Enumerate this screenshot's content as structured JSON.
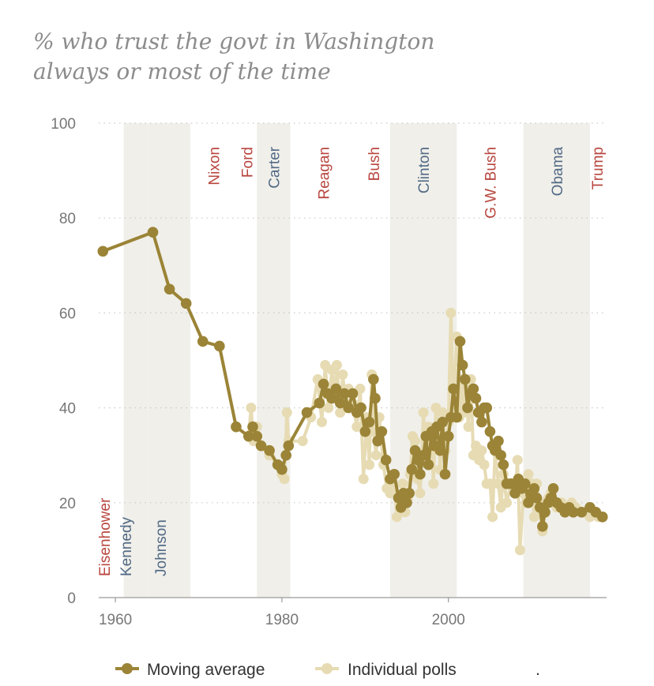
{
  "chart_data": {
    "type": "line",
    "title_lines": [
      "% who trust the govt in Washington",
      "always or most of the time"
    ],
    "ylim": [
      0,
      100
    ],
    "xlim": [
      1958,
      2019
    ],
    "y_ticks": [
      0,
      20,
      40,
      60,
      80,
      100
    ],
    "x_ticks": [
      1960,
      1980,
      2000
    ],
    "grid": "horizontal dotted",
    "legend_position": "bottom",
    "colors": {
      "moving_average": "#9b8437",
      "individual_polls": "#e6dbb3",
      "republican": "#b8463e",
      "democrat": "#526a85",
      "democrat_band": "#f0efea"
    },
    "presidents": [
      {
        "name": "Eisenhower",
        "party": "R",
        "start": 1958.0,
        "end": 1961.0
      },
      {
        "name": "Kennedy",
        "party": "D",
        "start": 1961.0,
        "end": 1963.9
      },
      {
        "name": "Johnson",
        "party": "D",
        "start": 1963.9,
        "end": 1969.0
      },
      {
        "name": "Nixon",
        "party": "R",
        "start": 1969.0,
        "end": 1974.6
      },
      {
        "name": "Ford",
        "party": "R",
        "start": 1974.6,
        "end": 1977.0
      },
      {
        "name": "Carter",
        "party": "D",
        "start": 1977.0,
        "end": 1981.0
      },
      {
        "name": "Reagan",
        "party": "R",
        "start": 1981.0,
        "end": 1989.0
      },
      {
        "name": "Bush",
        "party": "R",
        "start": 1989.0,
        "end": 1993.0
      },
      {
        "name": "Clinton",
        "party": "D",
        "start": 1993.0,
        "end": 2001.0
      },
      {
        "name": "G.W. Bush",
        "party": "R",
        "start": 2001.0,
        "end": 2009.0
      },
      {
        "name": "Obama",
        "party": "D",
        "start": 2009.0,
        "end": 2017.0
      },
      {
        "name": "Trump",
        "party": "R",
        "start": 2017.0,
        "end": 2019.0
      }
    ],
    "series": [
      {
        "name": "Moving average",
        "x": [
          1958.5,
          1964.5,
          1966.5,
          1968.5,
          1970.5,
          1972.5,
          1974.5,
          1976.0,
          1976.5,
          1977.0,
          1977.5,
          1978.5,
          1979.5,
          1980.0,
          1980.5,
          1980.8,
          1983.0,
          1984.5,
          1985.0,
          1985.5,
          1986.0,
          1986.5,
          1987.0,
          1987.5,
          1988.0,
          1988.5,
          1989.0,
          1989.5,
          1990.0,
          1990.5,
          1991.0,
          1991.2,
          1991.5,
          1992.0,
          1992.5,
          1993.0,
          1993.5,
          1994.0,
          1994.3,
          1994.6,
          1995.0,
          1995.3,
          1995.6,
          1996.0,
          1996.3,
          1996.6,
          1997.0,
          1997.3,
          1997.6,
          1998.0,
          1998.3,
          1998.6,
          1999.0,
          1999.3,
          1999.6,
          2000.0,
          2000.3,
          2000.6,
          2001.0,
          2001.4,
          2001.7,
          2002.0,
          2002.3,
          2002.6,
          2003.0,
          2003.3,
          2003.6,
          2004.0,
          2004.3,
          2004.6,
          2005.0,
          2005.3,
          2005.6,
          2006.0,
          2006.3,
          2006.6,
          2007.0,
          2007.5,
          2008.0,
          2008.4,
          2008.8,
          2009.2,
          2009.6,
          2010.0,
          2010.3,
          2010.6,
          2011.0,
          2011.3,
          2011.6,
          2012.0,
          2012.3,
          2012.6,
          2013.0,
          2013.5,
          2014.0,
          2014.5,
          2015.0,
          2016.0,
          2017.0,
          2017.7,
          2018.5
        ],
        "y": [
          73,
          77,
          65,
          62,
          54,
          53,
          36,
          34,
          36,
          34,
          32,
          31,
          28,
          27,
          30,
          32,
          39,
          41,
          45,
          43,
          42,
          44,
          41,
          43,
          40,
          43,
          39,
          40,
          35,
          37,
          46,
          42,
          33,
          35,
          29,
          25,
          26,
          21,
          19,
          22,
          20,
          22,
          27,
          31,
          29,
          26,
          30,
          34,
          28,
          35,
          32,
          36,
          31,
          37,
          26,
          34,
          38,
          44,
          38,
          54,
          49,
          46,
          40,
          43,
          44,
          42,
          39,
          37,
          40,
          40,
          35,
          32,
          31,
          33,
          30,
          28,
          24,
          24,
          22,
          25,
          23,
          24,
          20,
          22,
          23,
          21,
          19,
          15,
          18,
          20,
          21,
          23,
          20,
          19,
          18,
          19,
          18,
          18,
          19,
          18,
          17
        ]
      },
      {
        "name": "Individual polls",
        "x": [
          1958.5,
          1964.5,
          1966.5,
          1968.5,
          1970.5,
          1972.5,
          1974.5,
          1976.0,
          1976.3,
          1976.6,
          1977.0,
          1977.5,
          1978.5,
          1979.5,
          1980.0,
          1980.3,
          1980.6,
          1980.8,
          1982.5,
          1983.5,
          1984.3,
          1984.8,
          1985.2,
          1985.6,
          1986.0,
          1986.3,
          1986.6,
          1987.0,
          1987.3,
          1987.7,
          1988.0,
          1988.5,
          1989.0,
          1989.4,
          1989.8,
          1990.2,
          1990.5,
          1990.8,
          1991.0,
          1991.3,
          1991.7,
          1992.2,
          1992.6,
          1993.0,
          1993.4,
          1993.8,
          1994.2,
          1994.5,
          1994.8,
          1995.1,
          1995.4,
          1995.7,
          1996.0,
          1996.3,
          1996.6,
          1997.0,
          1997.3,
          1997.6,
          1998.0,
          1998.2,
          1998.5,
          1998.8,
          1999.0,
          1999.3,
          1999.6,
          2000.0,
          2000.3,
          2000.6,
          2001.0,
          2001.3,
          2001.5,
          2001.8,
          2002.1,
          2002.4,
          2002.7,
          2003.0,
          2003.3,
          2003.7,
          2004.0,
          2004.3,
          2004.6,
          2005.0,
          2005.3,
          2005.6,
          2006.0,
          2006.3,
          2006.6,
          2007.0,
          2007.5,
          2008.0,
          2008.3,
          2008.6,
          2009.0,
          2009.3,
          2009.6,
          2010.0,
          2010.3,
          2010.6,
          2011.0,
          2011.3,
          2011.6,
          2012.0,
          2012.3,
          2012.6,
          2013.0,
          2013.3,
          2013.6,
          2014.0,
          2014.4,
          2014.8,
          2015.3,
          2016.0,
          2017.0,
          2017.5,
          2018.0,
          2018.5
        ],
        "y": [
          73,
          77,
          65,
          62,
          54,
          53,
          36,
          34,
          40,
          33,
          36,
          32,
          30,
          28,
          26,
          25,
          39,
          33,
          33,
          38,
          46,
          37,
          49,
          40,
          48,
          43,
          49,
          39,
          47,
          40,
          44,
          41,
          36,
          44,
          25,
          38,
          28,
          47,
          35,
          30,
          38,
          28,
          23,
          22,
          26,
          17,
          20,
          24,
          18,
          21,
          26,
          34,
          33,
          25,
          22,
          39,
          30,
          36,
          33,
          24,
          40,
          36,
          27,
          39,
          31,
          37,
          60,
          40,
          55,
          38,
          46,
          39,
          44,
          36,
          46,
          30,
          32,
          29,
          31,
          28,
          24,
          24,
          17,
          31,
          24,
          19,
          26,
          20,
          24,
          22,
          29,
          10,
          22,
          20,
          26,
          24,
          17,
          24,
          18,
          14,
          20,
          21,
          22,
          20,
          19,
          19,
          20,
          18,
          19,
          20,
          19,
          18,
          17,
          18,
          17,
          17
        ]
      }
    ],
    "legend": [
      {
        "label": "Moving average",
        "series": "Moving average"
      },
      {
        "label": "Individual polls",
        "series": "Individual polls"
      }
    ],
    "footnote_mark": "."
  }
}
